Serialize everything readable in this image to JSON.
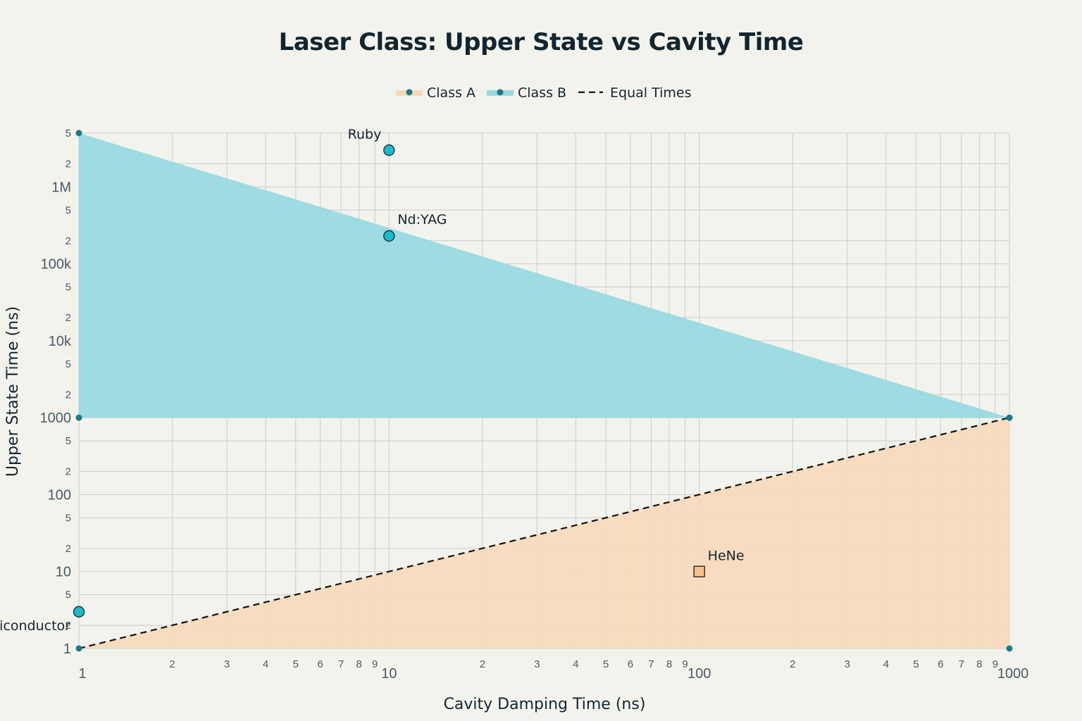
{
  "chart_data": {
    "type": "scatter",
    "title": "Laser Class: Upper State vs Cavity Time",
    "xlabel": "Cavity Damping Time (ns)",
    "ylabel": "Upper State Time (ns)",
    "x_scale": "log",
    "y_scale": "log",
    "xlim": [
      1,
      1000
    ],
    "ylim": [
      1,
      5000000
    ],
    "grid": true,
    "legend_position": "top-center",
    "colors": {
      "class_a_fill": "#f7d9b9",
      "class_b_fill": "#9ad9e1",
      "marker_class_b": "#21b8cb",
      "marker_class_a": "#f6c08c",
      "corner_marker": "#1f7a84",
      "equal_line": "#111111"
    },
    "x_ticks": {
      "major": [
        "1",
        "10",
        "100",
        "1000"
      ],
      "minor": [
        "2",
        "3",
        "4",
        "5",
        "6",
        "7",
        "8",
        "9"
      ]
    },
    "y_ticks": {
      "major": [
        "1",
        "10",
        "100",
        "1000",
        "10k",
        "100k",
        "1M"
      ],
      "minor": [
        "2",
        "5"
      ]
    },
    "legend": [
      {
        "label": "Class A",
        "style": "area-marker",
        "color": "#f7d9b9"
      },
      {
        "label": "Class B",
        "style": "area-marker",
        "color": "#9ad9e1"
      },
      {
        "label": "Equal Times",
        "style": "dash"
      }
    ],
    "series": [
      {
        "name": "Class A",
        "type": "area",
        "points": [
          {
            "x": 1,
            "y": 1
          },
          {
            "x": 1000,
            "y": 1
          },
          {
            "x": 1000,
            "y": 1000
          }
        ]
      },
      {
        "name": "Class B",
        "type": "area",
        "points": [
          {
            "x": 1,
            "y": 1000
          },
          {
            "x": 1,
            "y": 5000000
          },
          {
            "x": 1000,
            "y": 1000
          }
        ]
      },
      {
        "name": "Equal Times",
        "type": "line",
        "points": [
          {
            "x": 1,
            "y": 1
          },
          {
            "x": 1000,
            "y": 1000
          }
        ]
      }
    ],
    "lasers": [
      {
        "label": "Ruby",
        "x": 10,
        "y": 3000000,
        "marker": "circle",
        "class": "B"
      },
      {
        "label": "Nd:YAG",
        "x": 10,
        "y": 230000,
        "marker": "circle",
        "class": "B"
      },
      {
        "label": "HeNe",
        "x": 100,
        "y": 10,
        "marker": "square",
        "class": "A"
      },
      {
        "label": "Semiconductor",
        "x": 1,
        "y": 3,
        "marker": "circle",
        "class": "B"
      }
    ]
  }
}
